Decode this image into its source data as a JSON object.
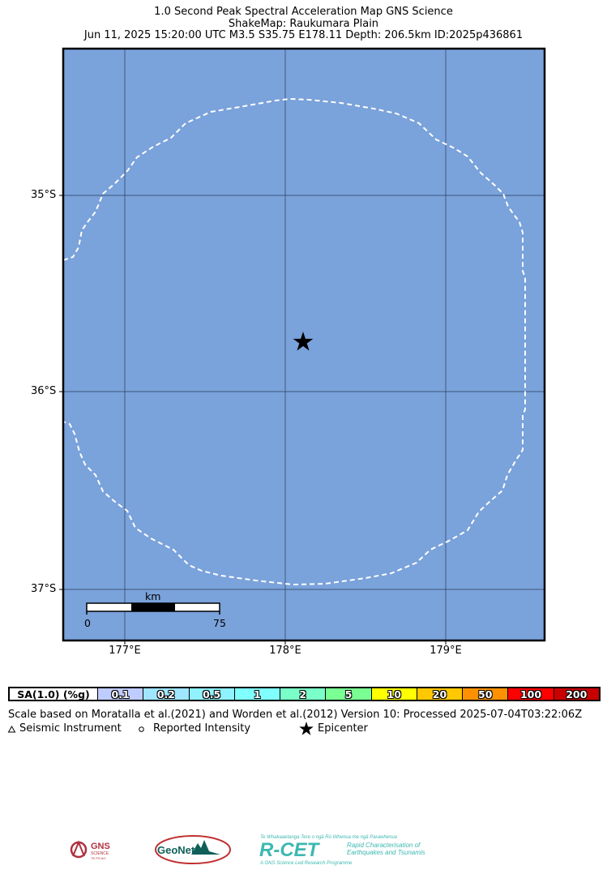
{
  "title": {
    "line1": "1.0 Second Peak Spectral Acceleration Map GNS Science",
    "line2": "ShakeMap: Raukumara Plain",
    "line3": "Jun 11, 2025 15:20:00 UTC M3.5 S35.75 E178.11 Depth: 206.5km ID:2025p436861"
  },
  "map": {
    "background_color": "#7aa2db",
    "contour_color": "#ffffff",
    "lat_labels": [
      "35°S",
      "36°S",
      "37°S"
    ],
    "lon_labels": [
      "177°E",
      "178°E",
      "179°E"
    ],
    "epicenter": {
      "lat": -35.75,
      "lon": 178.11
    },
    "scale_bar": {
      "unit": "km",
      "start": "0",
      "end": "75"
    }
  },
  "legend": {
    "header": "SA(1.0) (%g)",
    "bins": [
      {
        "label": "0.1",
        "color": "#bfccff"
      },
      {
        "label": "0.2",
        "color": "#a0e6ff"
      },
      {
        "label": "0.5",
        "color": "#90f2ff"
      },
      {
        "label": "1",
        "color": "#80ffff"
      },
      {
        "label": "2",
        "color": "#7affc8"
      },
      {
        "label": "5",
        "color": "#7aff93"
      },
      {
        "label": "10",
        "color": "#ffff00"
      },
      {
        "label": "20",
        "color": "#ffc800"
      },
      {
        "label": "50",
        "color": "#ff9100"
      },
      {
        "label": "100",
        "color": "#ff0000"
      },
      {
        "label": "200",
        "color": "#c80000"
      }
    ]
  },
  "notes": {
    "scale": "Scale based on Moratalla et al.(2021) and Worden et al.(2012) Version 10: Processed 2025-07-04T03:22:06Z",
    "instrument": "Seismic Instrument",
    "reported": "Reported Intensity",
    "epicenter": "Epicenter"
  },
  "logos": {
    "gns_main": "GNS",
    "gns_sub": "SCIENCE",
    "gns_maori": "TE PŪ AO",
    "geonet": "GeoNet",
    "rcet": "R-CET",
    "rcet_tagline": "Te Whakaaetanga Tere o ngā Rū Whenua me ngā Parawhenua",
    "rcet_line1": "Rapid Characterisation of",
    "rcet_line2": "Earthquakes and Tsunamis",
    "rcet_footer": "A GNS Science Led Research Programme"
  }
}
